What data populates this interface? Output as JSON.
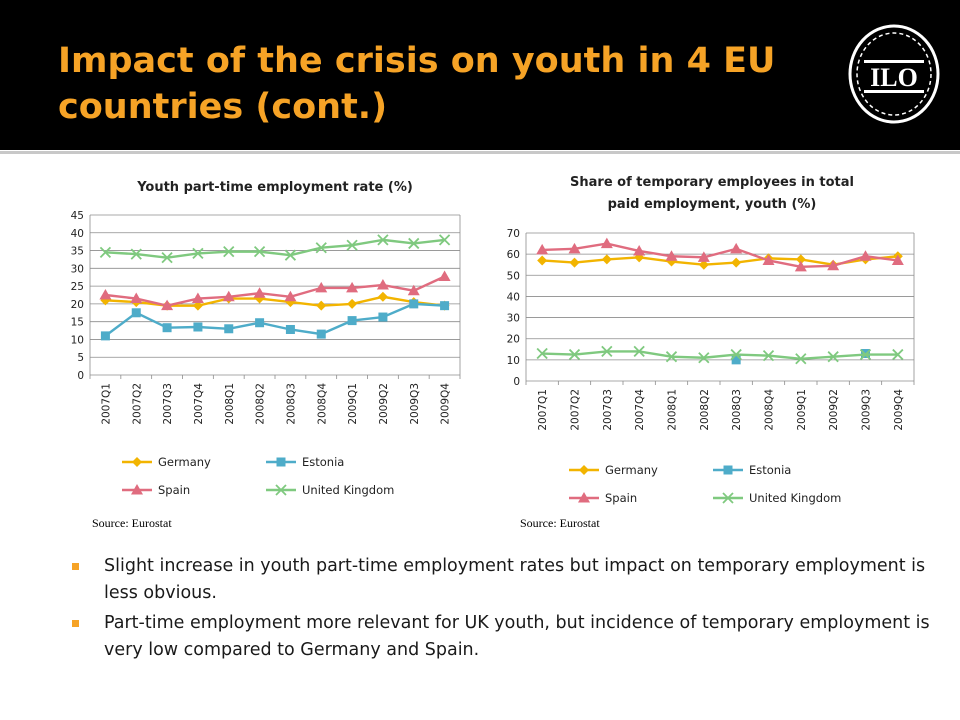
{
  "slide": {
    "title": "Impact of the crisis on youth in 4 EU countries (cont.)",
    "logo_text": "ILO",
    "sources": [
      "Source: Eurostat",
      "Source: Eurostat"
    ],
    "bullets": [
      "Slight increase in youth part-time employment rates but impact on temporary employment is less obvious.",
      "Part-time employment more relevant for UK youth, but incidence of temporary employment is very low compared to Germany and Spain."
    ]
  },
  "colors": {
    "title": "#f6a326",
    "header_bg": "#000000",
    "bullet": "#f6a326"
  },
  "chart_data": [
    {
      "type": "line",
      "title": "Youth part-time employment rate (%)",
      "categories": [
        "2007Q1",
        "2007Q2",
        "2007Q3",
        "2007Q4",
        "2008Q1",
        "2008Q2",
        "2008Q3",
        "2008Q4",
        "2009Q1",
        "2009Q2",
        "2009Q3",
        "2009Q4"
      ],
      "ylim": [
        0,
        45
      ],
      "yticks": [
        0,
        5,
        10,
        15,
        20,
        25,
        30,
        35,
        40,
        45
      ],
      "grid": true,
      "legend": "bottom",
      "series": [
        {
          "name": "Germany",
          "color": "#f2b400",
          "marker": "diamond",
          "values": [
            21,
            20.5,
            19.5,
            19.5,
            21.5,
            21.5,
            20.5,
            19.5,
            20,
            22,
            20.5,
            19.5
          ]
        },
        {
          "name": "Estonia",
          "color": "#4eacc9",
          "marker": "square",
          "values": [
            11,
            17.5,
            13.3,
            13.5,
            13,
            14.7,
            12.8,
            11.5,
            15.3,
            16.3,
            20,
            19.5
          ]
        },
        {
          "name": "Spain",
          "color": "#e06c7f",
          "marker": "triangle",
          "values": [
            22.5,
            21.5,
            19.5,
            21.5,
            22,
            23,
            22,
            24.5,
            24.5,
            25.3,
            23.7,
            27.7
          ]
        },
        {
          "name": "United Kingdom",
          "color": "#7fc97f",
          "marker": "x",
          "values": [
            34.5,
            34,
            33,
            34.2,
            34.7,
            34.7,
            33.7,
            35.8,
            36.5,
            38,
            37,
            38
          ]
        }
      ]
    },
    {
      "type": "line",
      "title": "Share of temporary employees in total paid employment, youth (%)",
      "title_lines": [
        "Share of temporary employees in total",
        "paid employment, youth (%)"
      ],
      "categories": [
        "2007Q1",
        "2007Q2",
        "2007Q3",
        "2007Q4",
        "2008Q1",
        "2008Q2",
        "2008Q3",
        "2008Q4",
        "2009Q1",
        "2009Q2",
        "2009Q3",
        "2009Q4"
      ],
      "ylim": [
        0,
        70
      ],
      "yticks": [
        0,
        10,
        20,
        30,
        40,
        50,
        60,
        70
      ],
      "grid": true,
      "legend": "bottom",
      "series": [
        {
          "name": "Germany",
          "color": "#f2b400",
          "marker": "diamond",
          "values": [
            57,
            56,
            57.5,
            58.5,
            56.5,
            55,
            56,
            58,
            57.5,
            55,
            57.5,
            59
          ]
        },
        {
          "name": "Estonia",
          "color": "#4eacc9",
          "marker": "square",
          "values": [
            null,
            null,
            null,
            null,
            null,
            null,
            10,
            null,
            null,
            null,
            13,
            null
          ]
        },
        {
          "name": "Spain",
          "color": "#e06c7f",
          "marker": "triangle",
          "values": [
            62,
            62.5,
            65,
            61.5,
            59,
            58.5,
            62.5,
            57,
            54,
            54.5,
            59,
            57
          ]
        },
        {
          "name": "United Kingdom",
          "color": "#7fc97f",
          "marker": "x",
          "values": [
            13,
            12.5,
            14,
            14,
            11.5,
            11,
            12.5,
            12,
            10.5,
            11.5,
            12.5,
            12.5
          ]
        }
      ]
    }
  ]
}
